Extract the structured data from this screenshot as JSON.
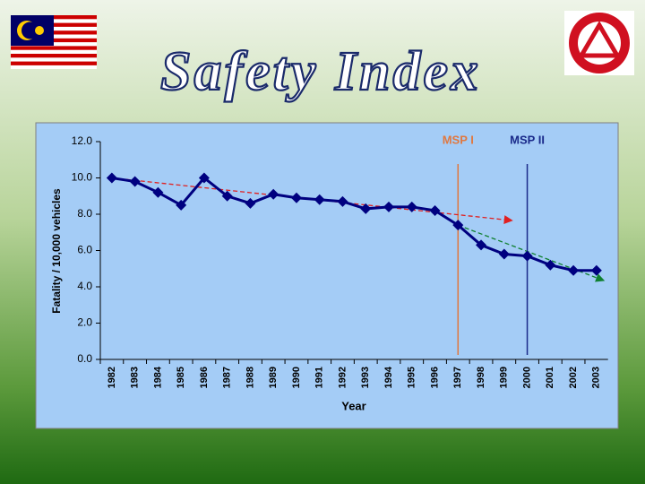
{
  "slide_title": "Safety Index",
  "chart_data": {
    "type": "line",
    "x_label": "Year",
    "y_label": "Fatality / 10,000 vehicles",
    "categories": [
      "1982",
      "1983",
      "1984",
      "1985",
      "1986",
      "1987",
      "1988",
      "1989",
      "1990",
      "1991",
      "1992",
      "1993",
      "1994",
      "1995",
      "1996",
      "1997",
      "1998",
      "1999",
      "2000",
      "2001",
      "2002",
      "2003"
    ],
    "series": [
      {
        "color": "#000080",
        "values": [
          10.0,
          9.8,
          9.2,
          8.5,
          10.0,
          9.0,
          8.6,
          9.1,
          8.9,
          8.8,
          8.7,
          8.3,
          8.4,
          8.4,
          8.2,
          7.4,
          6.3,
          5.8,
          5.7,
          5.2,
          4.9,
          4.9
        ]
      }
    ],
    "ylim": [
      0,
      12
    ],
    "yticks": [
      {
        "value": 0,
        "label": "0.0"
      },
      {
        "value": 2,
        "label": "2.0"
      },
      {
        "value": 4,
        "label": "4.0"
      },
      {
        "value": 6,
        "label": "6.0"
      },
      {
        "value": 8,
        "label": "8.0"
      },
      {
        "value": 10,
        "label": "10.0"
      },
      {
        "value": 12,
        "label": "12.0"
      }
    ],
    "markers": [
      {
        "label": "MSP I",
        "at": "1997",
        "color": "#e07840"
      },
      {
        "label": "MSP II",
        "at": "2000",
        "color": "#1a2a8a"
      }
    ],
    "trends": [
      {
        "color": "#e02020",
        "from": {
          "at": "1982",
          "value": 10.0
        },
        "to": {
          "at": "1999",
          "value": 7.7
        }
      },
      {
        "color": "#108030",
        "from": {
          "at": "1997",
          "value": 7.4
        },
        "to": {
          "at": "2003",
          "value": 4.5
        }
      }
    ]
  }
}
